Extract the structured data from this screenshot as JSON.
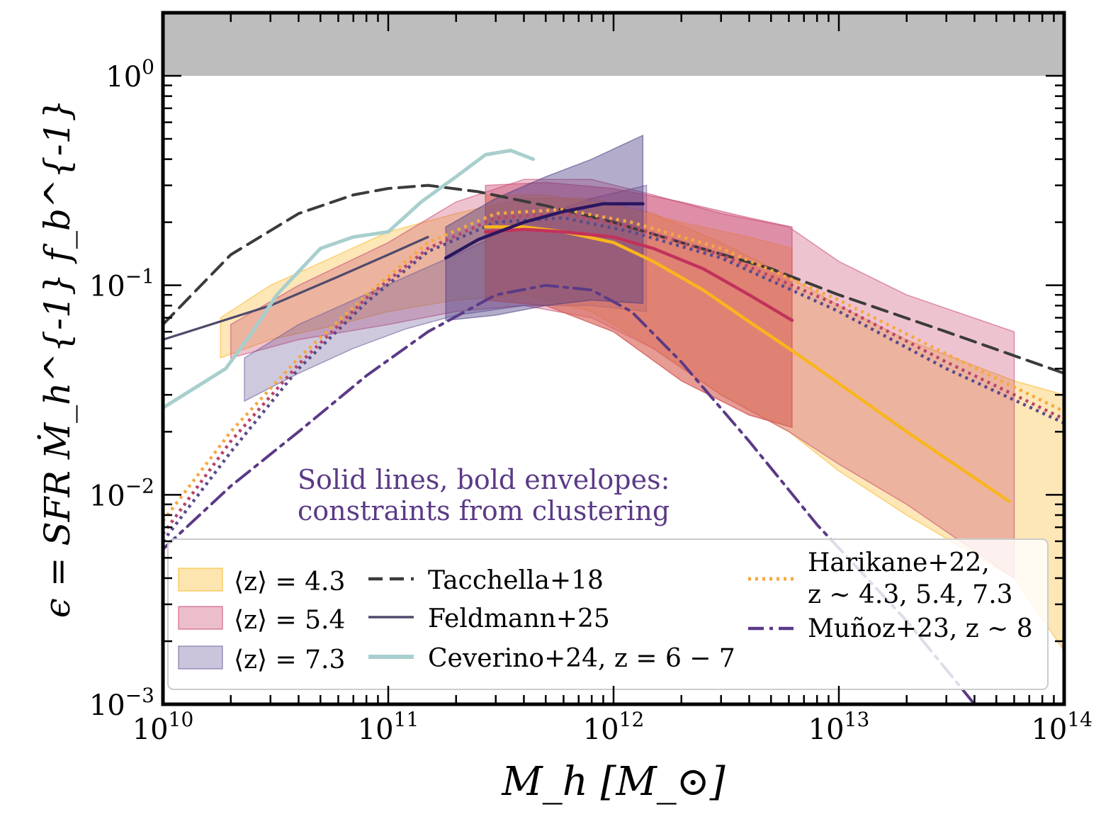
{
  "chart_data": {
    "type": "line",
    "xlabel": "M_h [M_⊙]",
    "ylabel": "ϵ = SFR Ṁ_h^{-1} f_b^{-1}",
    "xscale": "log",
    "yscale": "log",
    "xlim": [
      10000000000.0,
      100000000000000.0
    ],
    "ylim": [
      0.001,
      2.0
    ],
    "x_tick_labels": [
      {
        "base": "10",
        "exp": "10",
        "value": 10000000000.0
      },
      {
        "base": "10",
        "exp": "11",
        "value": 100000000000.0
      },
      {
        "base": "10",
        "exp": "12",
        "value": 1000000000000.0
      },
      {
        "base": "10",
        "exp": "13",
        "value": 10000000000000.0
      },
      {
        "base": "10",
        "exp": "14",
        "value": 100000000000000.0
      }
    ],
    "y_tick_labels": [
      {
        "base": "10",
        "exp": "0",
        "value": 1
      },
      {
        "base": "10",
        "exp": "−1",
        "value": 0.1
      },
      {
        "base": "10",
        "exp": "−2",
        "value": 0.01
      },
      {
        "base": "10",
        "exp": "−3",
        "value": 0.001
      }
    ],
    "excluded_region": {
      "y_from": 1.0,
      "y_to": 2.0,
      "color": "#bdbdbd"
    },
    "annotation": [
      "Solid lines, bold envelopes:",
      "constraints from clustering"
    ],
    "annotation_color": "#5b3a86",
    "envelopes": [
      {
        "label": "⟨z⟩ = 4.3",
        "color": "#f9b51e",
        "x": [
          18000000000.0,
          30000000000.0,
          60000000000.0,
          100000000000.0,
          200000000000.0,
          400000000000.0,
          800000000000.0,
          1500000000000.0,
          3000000000000.0,
          6000000000000.0,
          10000000000000.0,
          20000000000000.0,
          60000000000000.0,
          100000000000000.0
        ],
        "upper": [
          0.07,
          0.1,
          0.14,
          0.18,
          0.22,
          0.26,
          0.26,
          0.22,
          0.16,
          0.11,
          0.08,
          0.055,
          0.035,
          0.03
        ],
        "lower": [
          0.045,
          0.055,
          0.065,
          0.075,
          0.085,
          0.09,
          0.075,
          0.05,
          0.03,
          0.02,
          0.013,
          0.008,
          0.004,
          0.0018
        ]
      },
      {
        "label": "⟨z⟩ = 5.4",
        "color": "#c9456d",
        "x": [
          20000000000.0,
          40000000000.0,
          100000000000.0,
          200000000000.0,
          400000000000.0,
          800000000000.0,
          1500000000000.0,
          3000000000000.0,
          6000000000000.0,
          10000000000000.0,
          20000000000000.0,
          60000000000000.0
        ],
        "upper": [
          0.065,
          0.1,
          0.16,
          0.25,
          0.32,
          0.32,
          0.27,
          0.22,
          0.19,
          0.13,
          0.09,
          0.06
        ],
        "lower": [
          0.045,
          0.055,
          0.065,
          0.075,
          0.08,
          0.07,
          0.05,
          0.03,
          0.02,
          0.014,
          0.009,
          0.004
        ]
      },
      {
        "label": "⟨z⟩ = 7.3",
        "color": "#6a5899",
        "x": [
          23000000000.0,
          40000000000.0,
          70000000000.0,
          120000000000.0,
          200000000000.0,
          400000000000.0,
          800000000000.0,
          1400000000000.0
        ],
        "upper": [
          0.045,
          0.065,
          0.085,
          0.11,
          0.14,
          0.2,
          0.26,
          0.3
        ],
        "lower": [
          0.028,
          0.038,
          0.05,
          0.062,
          0.072,
          0.08,
          0.08,
          0.075
        ]
      }
    ],
    "constraint_envelopes": [
      {
        "label": "z = 4.3 clustering",
        "color": "#f6a840",
        "x_from": 270000000000.0,
        "x_to": 6200000000000.0,
        "x": [
          270000000000.0,
          500000000000.0,
          1000000000000.0,
          2000000000000.0,
          4000000000000.0,
          6200000000000.0
        ],
        "upper": [
          0.27,
          0.27,
          0.24,
          0.2,
          0.17,
          0.15
        ],
        "lower": [
          0.085,
          0.08,
          0.06,
          0.035,
          0.024,
          0.021
        ]
      },
      {
        "label": "z = 5.4 clustering",
        "color": "#c9456d",
        "x_from": 270000000000.0,
        "x_to": 6200000000000.0,
        "x": [
          270000000000.0,
          500000000000.0,
          1000000000000.0,
          2000000000000.0,
          4000000000000.0,
          6200000000000.0
        ],
        "upper": [
          0.3,
          0.31,
          0.29,
          0.25,
          0.21,
          0.19
        ],
        "lower": [
          0.085,
          0.08,
          0.06,
          0.035,
          0.024,
          0.021
        ]
      },
      {
        "label": "z = 7.3 clustering",
        "color": "#4a3b84",
        "x_from": 180000000000.0,
        "x_to": 1350000000000.0,
        "x": [
          180000000000.0,
          300000000000.0,
          500000000000.0,
          800000000000.0,
          1350000000000.0
        ],
        "upper": [
          0.19,
          0.26,
          0.33,
          0.4,
          0.52
        ],
        "lower": [
          0.068,
          0.072,
          0.08,
          0.085,
          0.082
        ]
      }
    ],
    "series": [
      {
        "name": "Tacchella+18",
        "style": "dashed",
        "color": "#3b3b3b",
        "x": [
          10000000000.0,
          20000000000.0,
          40000000000.0,
          70000000000.0,
          100000000000.0,
          150000000000.0,
          250000000000.0,
          500000000000.0,
          1000000000000.0,
          2000000000000.0,
          5000000000000.0,
          10000000000000.0,
          30000000000000.0,
          100000000000000.0
        ],
        "y": [
          0.065,
          0.14,
          0.22,
          0.27,
          0.29,
          0.3,
          0.28,
          0.24,
          0.2,
          0.16,
          0.12,
          0.09,
          0.06,
          0.038
        ]
      },
      {
        "name": "Feldmann+25",
        "style": "solid",
        "color": "#4e4a6b",
        "x": [
          10000000000.0,
          30000000000.0,
          60000000000.0,
          100000000000.0,
          150000000000.0
        ],
        "y": [
          0.055,
          0.08,
          0.11,
          0.14,
          0.17
        ]
      },
      {
        "name": "Ceverino+24, z = 6 − 7",
        "style": "solid",
        "color": "#a8cfcd",
        "x": [
          10000000000.0,
          19000000000.0,
          25000000000.0,
          32000000000.0,
          50000000000.0,
          70000000000.0,
          100000000000.0,
          140000000000.0,
          200000000000.0,
          270000000000.0,
          350000000000.0,
          440000000000.0
        ],
        "y": [
          0.026,
          0.04,
          0.06,
          0.09,
          0.15,
          0.17,
          0.18,
          0.25,
          0.33,
          0.42,
          0.44,
          0.4
        ]
      },
      {
        "name": "Harikane+22, z ∼ 4.3",
        "style": "dotted",
        "color": "#f6a840",
        "x": [
          10000000000.0,
          20000000000.0,
          40000000000.0,
          80000000000.0,
          150000000000.0,
          300000000000.0,
          600000000000.0,
          1200000000000.0,
          3000000000000.0,
          10000000000000.0,
          30000000000000.0,
          100000000000000.0
        ],
        "y": [
          0.0075,
          0.02,
          0.045,
          0.09,
          0.16,
          0.22,
          0.23,
          0.2,
          0.15,
          0.085,
          0.047,
          0.025
        ]
      },
      {
        "name": "Harikane+22, z ∼ 5.4",
        "style": "dotted",
        "color": "#b8456b",
        "x": [
          10000000000.0,
          20000000000.0,
          40000000000.0,
          80000000000.0,
          150000000000.0,
          300000000000.0,
          600000000000.0,
          1200000000000.0,
          3000000000000.0,
          10000000000000.0,
          30000000000000.0,
          100000000000000.0
        ],
        "y": [
          0.0065,
          0.018,
          0.042,
          0.087,
          0.15,
          0.21,
          0.22,
          0.19,
          0.14,
          0.08,
          0.043,
          0.023
        ]
      },
      {
        "name": "Harikane+22, z ∼ 7.3",
        "style": "dotted",
        "color": "#5b4a8c",
        "x": [
          10000000000.0,
          20000000000.0,
          40000000000.0,
          80000000000.0,
          150000000000.0,
          300000000000.0,
          600000000000.0,
          1200000000000.0,
          3000000000000.0,
          10000000000000.0,
          30000000000000.0,
          100000000000000.0
        ],
        "y": [
          0.006,
          0.016,
          0.04,
          0.083,
          0.145,
          0.2,
          0.21,
          0.18,
          0.135,
          0.075,
          0.04,
          0.022
        ]
      },
      {
        "name": "Muñoz+23, z ∼ 8",
        "style": "dashdot",
        "color": "#5b3a86",
        "x": [
          10000000000.0,
          20000000000.0,
          40000000000.0,
          80000000000.0,
          150000000000.0,
          300000000000.0,
          500000000000.0,
          800000000000.0,
          1200000000000.0,
          2000000000000.0,
          4000000000000.0,
          8000000000000.0,
          20000000000000.0,
          40000000000000.0
        ],
        "y": [
          0.0055,
          0.011,
          0.02,
          0.037,
          0.06,
          0.09,
          0.1,
          0.095,
          0.075,
          0.043,
          0.018,
          0.0072,
          0.0025,
          0.001
        ]
      },
      {
        "name": "z = 4.3 clustering fit",
        "style": "solid-bold",
        "color": "#f9b51e",
        "x": [
          270000000000.0,
          400000000000.0,
          600000000000.0,
          1000000000000.0,
          1500000000000.0,
          2500000000000.0,
          4000000000000.0,
          6000000000000.0,
          10000000000000.0,
          20000000000000.0,
          57000000000000.0
        ],
        "y": [
          0.19,
          0.19,
          0.18,
          0.16,
          0.13,
          0.095,
          0.067,
          0.05,
          0.034,
          0.02,
          0.0093
        ]
      },
      {
        "name": "z = 5.4 clustering fit",
        "style": "solid-bold",
        "color": "#c2325c",
        "x": [
          270000000000.0,
          400000000000.0,
          600000000000.0,
          1000000000000.0,
          1500000000000.0,
          2500000000000.0,
          4000000000000.0,
          6200000000000.0
        ],
        "y": [
          0.18,
          0.185,
          0.18,
          0.17,
          0.15,
          0.12,
          0.09,
          0.068
        ]
      },
      {
        "name": "z = 7.3 clustering fit",
        "style": "solid-bold",
        "color": "#2a1660",
        "x": [
          180000000000.0,
          250000000000.0,
          400000000000.0,
          600000000000.0,
          900000000000.0,
          1350000000000.0
        ],
        "y": [
          0.135,
          0.165,
          0.2,
          0.225,
          0.245,
          0.245
        ]
      }
    ],
    "legend": {
      "placement": "bottom",
      "col1": [
        {
          "label": "⟨z⟩ = 4.3",
          "kind": "patch",
          "color": "#f9b51e"
        },
        {
          "label": "⟨z⟩ = 5.4",
          "kind": "patch",
          "color": "#c9456d"
        },
        {
          "label": "⟨z⟩ = 7.3",
          "kind": "patch",
          "color": "#6a5899"
        }
      ],
      "col2": [
        {
          "label": "Tacchella+18",
          "kind": "dashed",
          "color": "#3b3b3b"
        },
        {
          "label": "Feldmann+25",
          "kind": "solid",
          "color": "#4e4a6b"
        },
        {
          "label": "Ceverino+24, z = 6 − 7",
          "kind": "solid-thick",
          "color": "#a8cfcd"
        }
      ],
      "col3": [
        {
          "label": "Harikane+22,",
          "label2": "z ∼ 4.3, 5.4, 7.3",
          "kind": "dotted",
          "color": "#f6a840"
        },
        {
          "label": "Muñoz+23, z ∼ 8",
          "kind": "dashdot",
          "color": "#5b3a86"
        }
      ]
    }
  }
}
